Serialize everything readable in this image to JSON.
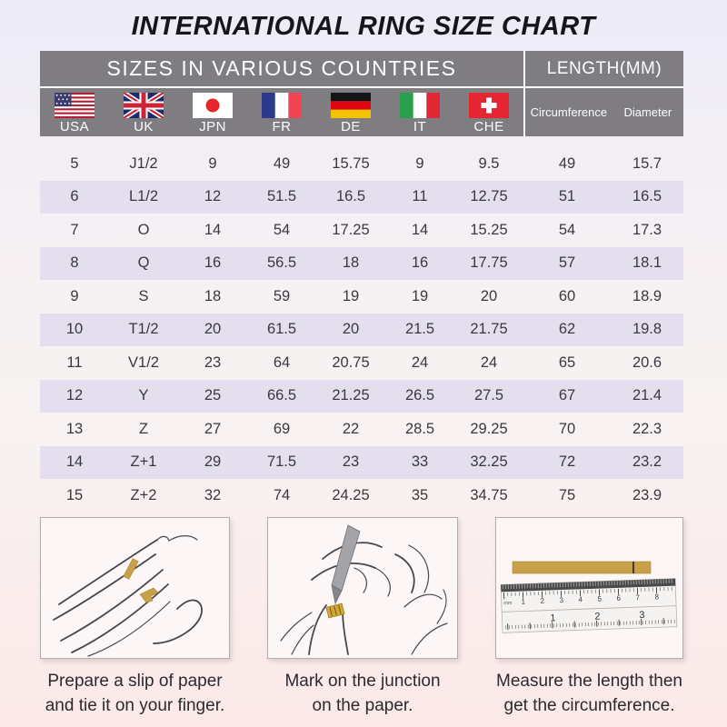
{
  "title": "INTERNATIONAL RING SIZE CHART",
  "table": {
    "header_left": "SIZES IN VARIOUS COUNTRIES",
    "header_right": "LENGTH(MM)",
    "countries": [
      {
        "code": "USA",
        "flag": "usa-flag"
      },
      {
        "code": "UK",
        "flag": "uk-flag"
      },
      {
        "code": "JPN",
        "flag": "jpn-flag"
      },
      {
        "code": "FR",
        "flag": "fr-flag"
      },
      {
        "code": "DE",
        "flag": "de-flag"
      },
      {
        "code": "IT",
        "flag": "it-flag"
      },
      {
        "code": "CHE",
        "flag": "che-flag"
      }
    ],
    "length_columns": [
      "Circumference",
      "Diameter"
    ]
  },
  "chart_data": {
    "type": "table",
    "title": "INTERNATIONAL RING SIZE CHART",
    "columns": [
      "USA",
      "UK",
      "JPN",
      "FR",
      "DE",
      "IT",
      "CHE",
      "Circumference",
      "Diameter"
    ],
    "rows": [
      [
        "5",
        "J1/2",
        "9",
        "49",
        "15.75",
        "9",
        "9.5",
        "49",
        "15.7"
      ],
      [
        "6",
        "L1/2",
        "12",
        "51.5",
        "16.5",
        "11",
        "12.75",
        "51",
        "16.5"
      ],
      [
        "7",
        "O",
        "14",
        "54",
        "17.25",
        "14",
        "15.25",
        "54",
        "17.3"
      ],
      [
        "8",
        "Q",
        "16",
        "56.5",
        "18",
        "16",
        "17.75",
        "57",
        "18.1"
      ],
      [
        "9",
        "S",
        "18",
        "59",
        "19",
        "19",
        "20",
        "60",
        "18.9"
      ],
      [
        "10",
        "T1/2",
        "20",
        "61.5",
        "20",
        "21.5",
        "21.75",
        "62",
        "19.8"
      ],
      [
        "11",
        "V1/2",
        "23",
        "64",
        "20.75",
        "24",
        "24",
        "65",
        "20.6"
      ],
      [
        "12",
        "Y",
        "25",
        "66.5",
        "21.25",
        "26.5",
        "27.5",
        "67",
        "21.4"
      ],
      [
        "13",
        "Z",
        "27",
        "69",
        "22",
        "28.5",
        "29.25",
        "70",
        "22.3"
      ],
      [
        "14",
        "Z+1",
        "29",
        "71.5",
        "23",
        "33",
        "32.25",
        "72",
        "23.2"
      ],
      [
        "15",
        "Z+2",
        "32",
        "74",
        "24.25",
        "35",
        "34.75",
        "75",
        "23.9"
      ]
    ]
  },
  "instructions": [
    {
      "illustration": "hand-with-paper-strip",
      "caption": "Prepare a slip of paper\nand tie it on your finger."
    },
    {
      "illustration": "mark-junction-pen",
      "caption": "Mark on the junction\non the paper."
    },
    {
      "illustration": "ruler-measure",
      "caption": "Measure the length then\nget the circumference.",
      "ruler_unit_label": "mm",
      "ruler_top_scale": [
        "1",
        "2",
        "3",
        "4",
        "5",
        "6",
        "7",
        "8"
      ],
      "ruler_bottom_scale": [
        "1",
        "2",
        "3"
      ]
    }
  ],
  "colors": {
    "header_bg": "#7f7d81",
    "header_text": "#ffffff",
    "row_stripe": "#e4dfee",
    "body_text": "#3a3740",
    "paper_strip_gold": "#c8a04a",
    "background_top": "#ecebf7",
    "background_bottom": "#fbe9e8"
  }
}
